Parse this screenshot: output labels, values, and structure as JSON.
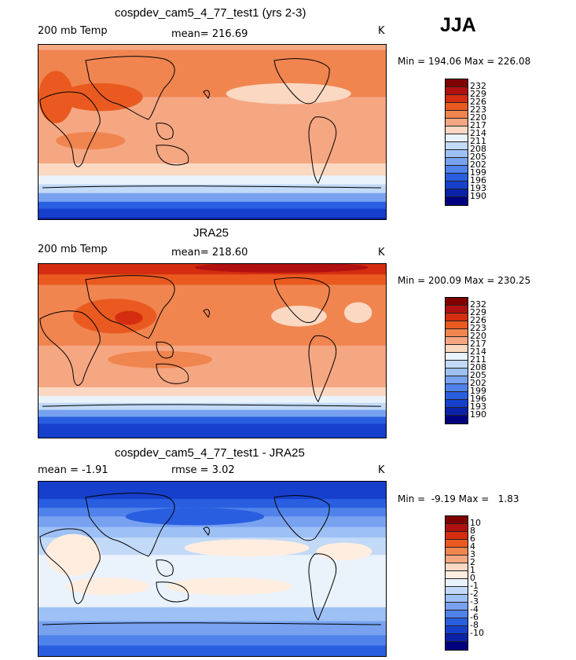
{
  "season": "JJA",
  "panels": [
    {
      "title": "cospdev_cam5_4_77_test1 (yrs 2-3)",
      "left_label": "200 mb Temp",
      "center_label": "mean= 216.69",
      "units": "K",
      "minmax": "Min = 194.06 Max = 226.08"
    },
    {
      "title": "JRA25",
      "left_label": "200 mb Temp",
      "center_label": "mean= 218.60",
      "units": "K",
      "minmax": "Min = 200.09 Max = 230.25"
    },
    {
      "title": "cospdev_cam5_4_77_test1 - JRA25",
      "left_label": "mean =  -1.91",
      "center_label": "rmse =   3.02",
      "units": "K",
      "minmax": "Min =  -9.19 Max =   1.83"
    }
  ],
  "colors": {
    "temp_scale": [
      "#7f0000",
      "#b01010",
      "#d42d10",
      "#ea5a20",
      "#f08550",
      "#f5a782",
      "#fbd8c2",
      "#eaf2fb",
      "#c2d9f7",
      "#9dc0f5",
      "#78a2f0",
      "#4f82ea",
      "#2a5ee0",
      "#1640cc",
      "#0a22a8",
      "#00007f"
    ],
    "diff_scale": [
      "#7f0000",
      "#b01010",
      "#d42d10",
      "#ea5a20",
      "#f08550",
      "#f5a782",
      "#fbd8c2",
      "#ffeee0",
      "#eaf2fb",
      "#c2d9f7",
      "#9dc0f5",
      "#78a2f0",
      "#4f82ea",
      "#2a5ee0",
      "#1640cc",
      "#0a22a8",
      "#00007f"
    ]
  },
  "chart_data": [
    {
      "type": "heatmap",
      "title": "cospdev_cam5_4_77_test1 (yrs 2-3)",
      "variable": "200 mb Temp",
      "units": "K",
      "mean": 216.69,
      "min": 194.06,
      "max": 226.08,
      "levels": [
        232,
        229,
        226,
        223,
        220,
        217,
        214,
        211,
        208,
        205,
        202,
        199,
        196,
        193,
        190
      ]
    },
    {
      "type": "heatmap",
      "title": "JRA25",
      "variable": "200 mb Temp",
      "units": "K",
      "mean": 218.6,
      "min": 200.09,
      "max": 230.25,
      "levels": [
        232,
        229,
        226,
        223,
        220,
        217,
        214,
        211,
        208,
        205,
        202,
        199,
        196,
        193,
        190
      ]
    },
    {
      "type": "heatmap",
      "title": "cospdev_cam5_4_77_test1 - JRA25",
      "units": "K",
      "mean": -1.91,
      "rmse": 3.02,
      "min": -9.19,
      "max": 1.83,
      "levels": [
        10,
        8,
        6,
        4,
        3,
        2,
        1,
        0,
        -1,
        -2,
        -3,
        -4,
        -6,
        -8,
        -10
      ]
    }
  ]
}
